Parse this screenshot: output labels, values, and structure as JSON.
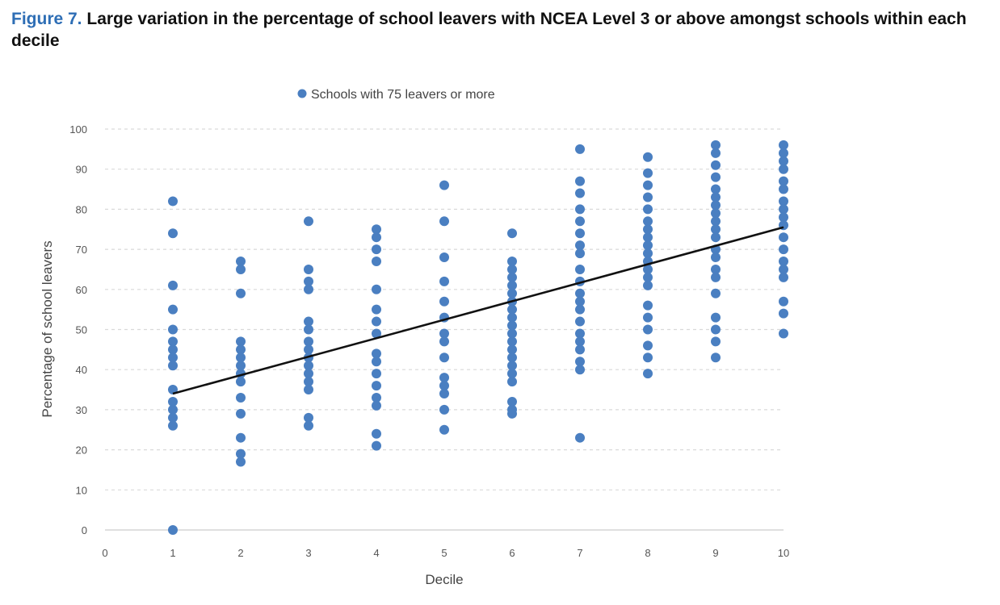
{
  "figure": {
    "number": "Figure 7.",
    "title": "Large variation in the percentage of school leavers with NCEA Level 3 or above amongst schools within each decile"
  },
  "colors": {
    "accent": "#2e6eb5",
    "point": "#4a7fc1",
    "trendline": "#111111",
    "grid": "#d9d9d9"
  },
  "chart_data": {
    "type": "scatter",
    "xlabel": "Decile",
    "ylabel": "Percentage of school leavers",
    "xlim": [
      0,
      10
    ],
    "ylim": [
      0,
      100
    ],
    "xticks": [
      "0",
      "1",
      "2",
      "3",
      "4",
      "5",
      "6",
      "7",
      "8",
      "9",
      "10"
    ],
    "yticks": [
      "0",
      "10",
      "20",
      "30",
      "40",
      "50",
      "60",
      "70",
      "80",
      "90",
      "100"
    ],
    "grid": "horizontal dashed",
    "legend": "top-center",
    "series": [
      {
        "name": "Schools with 75 leavers or more",
        "points": [
          [
            1,
            82
          ],
          [
            1,
            74
          ],
          [
            1,
            61
          ],
          [
            1,
            55
          ],
          [
            1,
            50
          ],
          [
            1,
            47
          ],
          [
            1,
            45
          ],
          [
            1,
            43
          ],
          [
            1,
            41
          ],
          [
            1,
            35
          ],
          [
            1,
            32
          ],
          [
            1,
            30
          ],
          [
            1,
            28
          ],
          [
            1,
            26
          ],
          [
            1,
            0
          ],
          [
            2,
            67
          ],
          [
            2,
            65
          ],
          [
            2,
            59
          ],
          [
            2,
            47
          ],
          [
            2,
            45
          ],
          [
            2,
            43
          ],
          [
            2,
            41
          ],
          [
            2,
            39
          ],
          [
            2,
            37
          ],
          [
            2,
            33
          ],
          [
            2,
            29
          ],
          [
            2,
            23
          ],
          [
            2,
            19
          ],
          [
            2,
            17
          ],
          [
            3,
            77
          ],
          [
            3,
            65
          ],
          [
            3,
            62
          ],
          [
            3,
            60
          ],
          [
            3,
            52
          ],
          [
            3,
            50
          ],
          [
            3,
            47
          ],
          [
            3,
            45
          ],
          [
            3,
            43
          ],
          [
            3,
            41
          ],
          [
            3,
            39
          ],
          [
            3,
            37
          ],
          [
            3,
            35
          ],
          [
            3,
            28
          ],
          [
            3,
            26
          ],
          [
            4,
            75
          ],
          [
            4,
            73
          ],
          [
            4,
            70
          ],
          [
            4,
            67
          ],
          [
            4,
            60
          ],
          [
            4,
            55
          ],
          [
            4,
            52
          ],
          [
            4,
            49
          ],
          [
            4,
            44
          ],
          [
            4,
            42
          ],
          [
            4,
            39
          ],
          [
            4,
            36
          ],
          [
            4,
            33
          ],
          [
            4,
            31
          ],
          [
            4,
            24
          ],
          [
            4,
            21
          ],
          [
            5,
            86
          ],
          [
            5,
            77
          ],
          [
            5,
            68
          ],
          [
            5,
            62
          ],
          [
            5,
            57
          ],
          [
            5,
            53
          ],
          [
            5,
            49
          ],
          [
            5,
            47
          ],
          [
            5,
            43
          ],
          [
            5,
            38
          ],
          [
            5,
            36
          ],
          [
            5,
            34
          ],
          [
            5,
            30
          ],
          [
            5,
            25
          ],
          [
            6,
            74
          ],
          [
            6,
            67
          ],
          [
            6,
            65
          ],
          [
            6,
            63
          ],
          [
            6,
            61
          ],
          [
            6,
            59
          ],
          [
            6,
            57
          ],
          [
            6,
            55
          ],
          [
            6,
            53
          ],
          [
            6,
            51
          ],
          [
            6,
            49
          ],
          [
            6,
            47
          ],
          [
            6,
            45
          ],
          [
            6,
            43
          ],
          [
            6,
            41
          ],
          [
            6,
            39
          ],
          [
            6,
            37
          ],
          [
            6,
            32
          ],
          [
            6,
            30
          ],
          [
            6,
            29
          ],
          [
            7,
            95
          ],
          [
            7,
            87
          ],
          [
            7,
            84
          ],
          [
            7,
            80
          ],
          [
            7,
            77
          ],
          [
            7,
            74
          ],
          [
            7,
            71
          ],
          [
            7,
            69
          ],
          [
            7,
            65
          ],
          [
            7,
            62
          ],
          [
            7,
            59
          ],
          [
            7,
            57
          ],
          [
            7,
            55
          ],
          [
            7,
            52
          ],
          [
            7,
            49
          ],
          [
            7,
            47
          ],
          [
            7,
            45
          ],
          [
            7,
            42
          ],
          [
            7,
            40
          ],
          [
            7,
            23
          ],
          [
            8,
            93
          ],
          [
            8,
            89
          ],
          [
            8,
            86
          ],
          [
            8,
            83
          ],
          [
            8,
            80
          ],
          [
            8,
            77
          ],
          [
            8,
            75
          ],
          [
            8,
            73
          ],
          [
            8,
            71
          ],
          [
            8,
            69
          ],
          [
            8,
            67
          ],
          [
            8,
            65
          ],
          [
            8,
            63
          ],
          [
            8,
            61
          ],
          [
            8,
            56
          ],
          [
            8,
            53
          ],
          [
            8,
            50
          ],
          [
            8,
            46
          ],
          [
            8,
            43
          ],
          [
            8,
            39
          ],
          [
            9,
            96
          ],
          [
            9,
            94
          ],
          [
            9,
            91
          ],
          [
            9,
            88
          ],
          [
            9,
            85
          ],
          [
            9,
            83
          ],
          [
            9,
            81
          ],
          [
            9,
            79
          ],
          [
            9,
            77
          ],
          [
            9,
            75
          ],
          [
            9,
            73
          ],
          [
            9,
            70
          ],
          [
            9,
            68
          ],
          [
            9,
            65
          ],
          [
            9,
            63
          ],
          [
            9,
            59
          ],
          [
            9,
            53
          ],
          [
            9,
            50
          ],
          [
            9,
            47
          ],
          [
            9,
            43
          ],
          [
            10,
            96
          ],
          [
            10,
            94
          ],
          [
            10,
            92
          ],
          [
            10,
            90
          ],
          [
            10,
            87
          ],
          [
            10,
            85
          ],
          [
            10,
            82
          ],
          [
            10,
            80
          ],
          [
            10,
            78
          ],
          [
            10,
            76
          ],
          [
            10,
            73
          ],
          [
            10,
            70
          ],
          [
            10,
            67
          ],
          [
            10,
            65
          ],
          [
            10,
            63
          ],
          [
            10,
            57
          ],
          [
            10,
            54
          ],
          [
            10,
            49
          ]
        ]
      }
    ],
    "trendline": {
      "x": [
        1,
        10
      ],
      "y": [
        34,
        75.5
      ]
    }
  }
}
